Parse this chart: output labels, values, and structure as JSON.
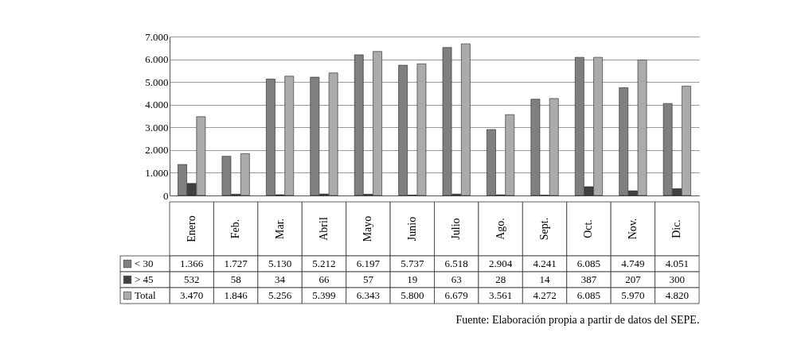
{
  "chart_data": {
    "type": "bar",
    "categories": [
      "Enero",
      "Feb.",
      "Mar.",
      "Abril",
      "Mayo",
      "Junio",
      "Julio",
      "Ago.",
      "Sept.",
      "Oct.",
      "Nov.",
      "Dic."
    ],
    "series": [
      {
        "name": "< 30",
        "color": "#7f7f7f",
        "values": [
          1366,
          1727,
          5130,
          5212,
          6197,
          5737,
          6518,
          2904,
          4241,
          6085,
          4749,
          4051
        ],
        "value_labels": [
          "1.366",
          "1.727",
          "5.130",
          "5.212",
          "6.197",
          "5.737",
          "6.518",
          "2.904",
          "4.241",
          "6.085",
          "4.749",
          "4.051"
        ]
      },
      {
        "name": "> 45",
        "color": "#404040",
        "values": [
          532,
          58,
          34,
          66,
          57,
          19,
          63,
          28,
          14,
          387,
          207,
          300
        ],
        "value_labels": [
          "532",
          "58",
          "34",
          "66",
          "57",
          "19",
          "63",
          "28",
          "14",
          "387",
          "207",
          "300"
        ]
      },
      {
        "name": "Total",
        "color": "#ababab",
        "values": [
          3470,
          1846,
          5256,
          5399,
          6343,
          5800,
          6679,
          3561,
          4272,
          6085,
          5970,
          4820
        ],
        "value_labels": [
          "3.470",
          "1.846",
          "5.256",
          "5.399",
          "6.343",
          "5.800",
          "6.679",
          "3.561",
          "4.272",
          "6.085",
          "5.970",
          "4.820"
        ]
      }
    ],
    "ylim": [
      0,
      7000
    ],
    "yticks": [
      {
        "value": 0,
        "label": "0"
      },
      {
        "value": 1000,
        "label": "1.000"
      },
      {
        "value": 2000,
        "label": "2.000"
      },
      {
        "value": 3000,
        "label": "3.000"
      },
      {
        "value": 4000,
        "label": "4.000"
      },
      {
        "value": 5000,
        "label": "5.000"
      },
      {
        "value": 6000,
        "label": "6.000"
      },
      {
        "value": 7000,
        "label": "7.000"
      }
    ],
    "grid": "y",
    "legend": "bottom left",
    "annotations": [
      "Fuente: Elaboración propia a partir de datos del SEPE."
    ]
  }
}
